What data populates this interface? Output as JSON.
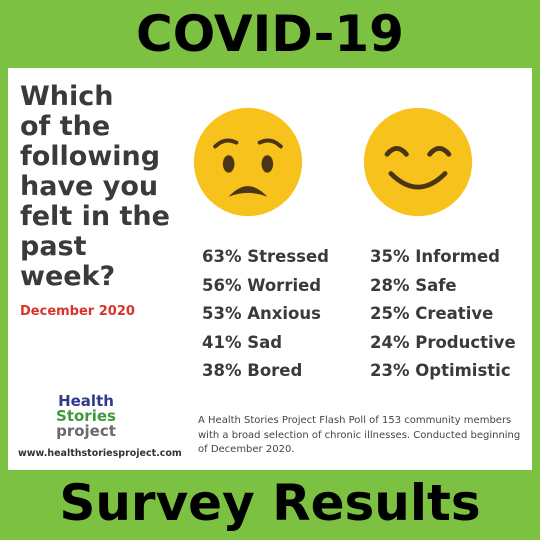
{
  "header": {
    "title": "COVID-19"
  },
  "footer": {
    "title": "Survey Results"
  },
  "question": {
    "lines": [
      "Which",
      "of the",
      "following",
      "have you",
      "felt in the",
      "past",
      "week?"
    ]
  },
  "date": "December 2020",
  "faces": {
    "left_icon": "worried-face-icon",
    "right_icon": "smiling-face-icon",
    "color": "#f7c21b"
  },
  "results": {
    "negative": [
      "63% Stressed",
      "56% Worried",
      "53% Anxious",
      "41% Sad",
      "38% Bored"
    ],
    "positive": [
      "35% Informed",
      "28% Safe",
      "25% Creative",
      "24% Productive",
      "23% Optimistic"
    ]
  },
  "logo": {
    "line1": "Health",
    "line2": "Stories",
    "line3": "project"
  },
  "url": "www.healthstoriesproject.com",
  "note": "A Health Stories Project Flash Poll of 153 community members with a broad selection of chronic illnesses. Conducted beginning of December 2020.",
  "colors": {
    "background": "#7dc142",
    "panel": "#ffffff",
    "date": "#d9342b",
    "text": "#3a3a3a"
  }
}
